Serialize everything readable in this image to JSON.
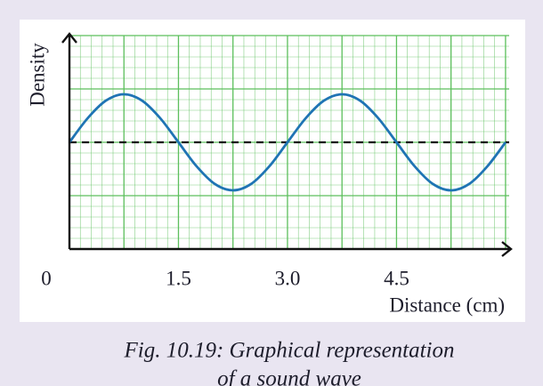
{
  "chart_data": {
    "type": "line",
    "caption": [
      "Fig. 10.19: Graphical representation",
      "of a sound wave"
    ],
    "x_label": "Distance (cm)",
    "y_label": "Density",
    "x": [
      0,
      0.25,
      0.5,
      0.75,
      1,
      1.25,
      1.5,
      1.75,
      2,
      2.25,
      2.5,
      2.75,
      3,
      3.25,
      3.5,
      3.75,
      4,
      4.25,
      4.5,
      4.75,
      5,
      5.25,
      5.5,
      5.75,
      6
    ],
    "series": [
      {
        "color": "#1f74b4",
        "values": [
          0,
          0.45,
          0.78,
          0.9,
          0.78,
          0.45,
          0,
          -0.45,
          -0.78,
          -0.9,
          -0.78,
          -0.45,
          0,
          0.45,
          0.78,
          0.9,
          0.78,
          0.45,
          0,
          -0.45,
          -0.78,
          -0.9,
          -0.78,
          -0.45,
          0
        ]
      }
    ],
    "reference_line": 0,
    "xlim": [
      0,
      6.05
    ],
    "ylim": [
      -2,
      2
    ],
    "xticks": [
      0,
      1.5,
      {
        "value": 3,
        "label": "3.0"
      },
      4.5
    ],
    "grid": {
      "x_step": 0.15,
      "y_step": 0.2,
      "major_every": 5,
      "color": "#5cbf5c"
    }
  }
}
